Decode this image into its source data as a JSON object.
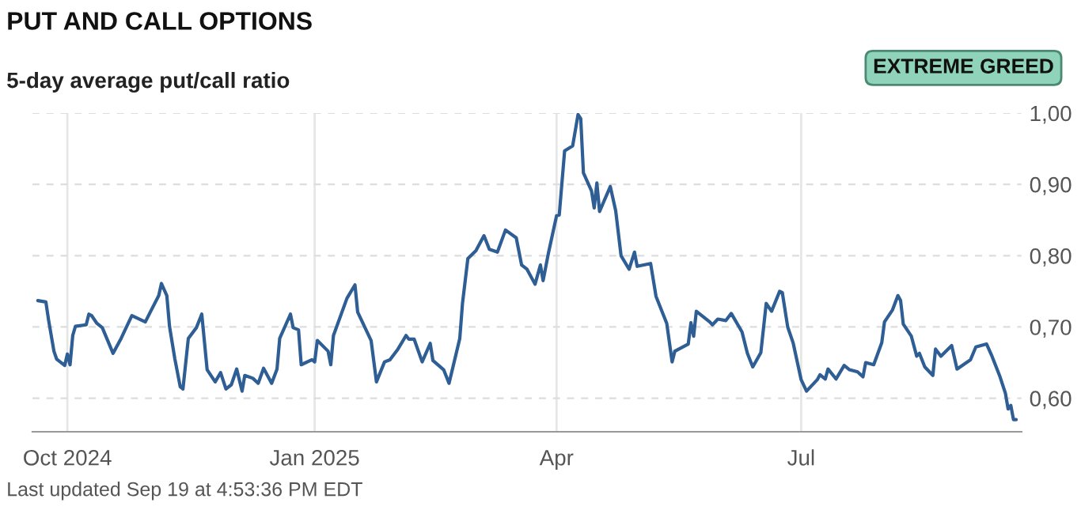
{
  "chart_data": {
    "type": "line",
    "title": "PUT AND CALL OPTIONS",
    "subtitle": "5-day average put/call ratio",
    "annotations": [
      "EXTREME GREED",
      "Last updated Sep 19 at 4:53:36 PM EDT"
    ],
    "x": [
      "2024-09-20",
      "2024-09-23",
      "2024-09-24",
      "2024-09-26",
      "2024-09-27",
      "2024-09-30",
      "2024-10-01",
      "2024-10-02",
      "2024-10-03",
      "2024-10-04",
      "2024-10-08",
      "2024-10-09",
      "2024-10-10",
      "2024-10-12",
      "2024-10-14",
      "2024-10-16",
      "2024-10-18",
      "2024-10-21",
      "2024-10-23",
      "2024-10-25",
      "2024-10-30",
      "2024-11-01",
      "2024-11-04",
      "2024-11-05",
      "2024-11-07",
      "2024-11-08",
      "2024-11-10",
      "2024-11-12",
      "2024-11-13",
      "2024-11-15",
      "2024-11-18",
      "2024-11-20",
      "2024-11-22",
      "2024-11-25",
      "2024-11-27",
      "2024-11-29",
      "2024-12-01",
      "2024-12-03",
      "2024-12-05",
      "2024-12-06",
      "2024-12-09",
      "2024-12-11",
      "2024-12-13",
      "2024-12-16",
      "2024-12-18",
      "2024-12-19",
      "2024-12-23",
      "2024-12-24",
      "2024-12-26",
      "2024-12-27",
      "2024-12-31",
      "2025-01-01",
      "2025-01-02",
      "2025-01-06",
      "2025-01-07",
      "2025-01-08",
      "2025-01-13",
      "2025-01-16",
      "2025-01-17",
      "2025-01-22",
      "2025-01-24",
      "2025-01-27",
      "2025-01-29",
      "2025-02-01",
      "2025-02-04",
      "2025-02-05",
      "2025-02-07",
      "2025-02-10",
      "2025-02-13",
      "2025-02-14",
      "2025-02-18",
      "2025-02-20",
      "2025-02-24",
      "2025-02-25",
      "2025-02-27",
      "2025-03-02",
      "2025-03-05",
      "2025-03-07",
      "2025-03-10",
      "2025-03-13",
      "2025-03-17",
      "2025-03-19",
      "2025-03-21",
      "2025-03-24",
      "2025-03-26",
      "2025-03-27",
      "2025-03-29",
      "2025-04-01",
      "2025-04-02",
      "2025-04-04",
      "2025-04-07",
      "2025-04-09",
      "2025-04-10",
      "2025-04-11",
      "2025-04-14",
      "2025-04-15",
      "2025-04-16",
      "2025-04-17",
      "2025-04-21",
      "2025-04-23",
      "2025-04-25",
      "2025-04-28",
      "2025-04-30",
      "2025-05-01",
      "2025-05-06",
      "2025-05-08",
      "2025-05-12",
      "2025-05-14",
      "2025-05-15",
      "2025-05-20",
      "2025-05-21",
      "2025-05-22",
      "2025-05-23",
      "2025-05-28",
      "2025-05-29",
      "2025-05-31",
      "2025-06-03",
      "2025-06-05",
      "2025-06-09",
      "2025-06-11",
      "2025-06-13",
      "2025-06-16",
      "2025-06-18",
      "2025-06-20",
      "2025-06-23",
      "2025-06-24",
      "2025-06-26",
      "2025-06-28",
      "2025-07-01",
      "2025-07-03",
      "2025-07-07",
      "2025-07-08",
      "2025-07-10",
      "2025-07-11",
      "2025-07-14",
      "2025-07-17",
      "2025-07-19",
      "2025-07-22",
      "2025-07-24",
      "2025-07-25",
      "2025-07-28",
      "2025-07-31",
      "2025-08-01",
      "2025-08-04",
      "2025-08-06",
      "2025-08-07",
      "2025-08-08",
      "2025-08-11",
      "2025-08-13",
      "2025-08-14",
      "2025-08-16",
      "2025-08-19",
      "2025-08-20",
      "2025-08-22",
      "2025-08-26",
      "2025-08-28",
      "2025-09-02",
      "2025-09-04",
      "2025-09-08",
      "2025-09-10",
      "2025-09-13",
      "2025-09-15",
      "2025-09-16",
      "2025-09-17",
      "2025-09-18",
      "2025-09-19"
    ],
    "series": [
      {
        "color": "#2e5e94",
        "values": [
          0.737,
          0.735,
          0.71,
          0.666,
          0.655,
          0.646,
          0.662,
          0.647,
          0.688,
          0.701,
          0.703,
          0.718,
          0.716,
          0.705,
          0.699,
          0.681,
          0.663,
          0.684,
          0.7,
          0.716,
          0.707,
          0.722,
          0.744,
          0.761,
          0.744,
          0.701,
          0.655,
          0.616,
          0.613,
          0.684,
          0.699,
          0.718,
          0.64,
          0.623,
          0.636,
          0.613,
          0.619,
          0.641,
          0.61,
          0.632,
          0.628,
          0.621,
          0.642,
          0.621,
          0.641,
          0.684,
          0.718,
          0.699,
          0.696,
          0.647,
          0.654,
          0.651,
          0.681,
          0.666,
          0.647,
          0.688,
          0.74,
          0.759,
          0.721,
          0.681,
          0.623,
          0.651,
          0.654,
          0.669,
          0.688,
          0.683,
          0.683,
          0.651,
          0.677,
          0.653,
          0.64,
          0.621,
          0.684,
          0.733,
          0.796,
          0.807,
          0.828,
          0.809,
          0.805,
          0.836,
          0.825,
          0.787,
          0.781,
          0.76,
          0.787,
          0.765,
          0.804,
          0.856,
          0.857,
          0.947,
          0.954,
          0.998,
          0.992,
          0.916,
          0.891,
          0.867,
          0.902,
          0.862,
          0.897,
          0.863,
          0.8,
          0.781,
          0.805,
          0.785,
          0.789,
          0.743,
          0.705,
          0.651,
          0.666,
          0.676,
          0.706,
          0.687,
          0.722,
          0.707,
          0.703,
          0.711,
          0.709,
          0.719,
          0.693,
          0.663,
          0.644,
          0.664,
          0.733,
          0.722,
          0.75,
          0.748,
          0.7,
          0.678,
          0.626,
          0.61,
          0.626,
          0.633,
          0.627,
          0.641,
          0.627,
          0.646,
          0.64,
          0.637,
          0.63,
          0.65,
          0.647,
          0.678,
          0.707,
          0.724,
          0.744,
          0.737,
          0.704,
          0.687,
          0.659,
          0.663,
          0.644,
          0.632,
          0.669,
          0.659,
          0.674,
          0.641,
          0.654,
          0.672,
          0.676,
          0.659,
          0.63,
          0.607,
          0.585,
          0.59,
          0.57,
          0.57
        ]
      }
    ],
    "xlim": [
      "2024-09-18",
      "2025-09-21"
    ],
    "xticks": [
      {
        "value": "2024-10-01",
        "label": "Oct 2024"
      },
      {
        "value": "2025-01-01",
        "label": "Jan 2025"
      },
      {
        "value": "2025-04-01",
        "label": "Apr"
      },
      {
        "value": "2025-07-01",
        "label": "Jul"
      }
    ],
    "ylim": [
      0.553,
      1.0
    ],
    "yticks": [
      {
        "value": 0.6,
        "label": "0,60"
      },
      {
        "value": 0.7,
        "label": "0,70"
      },
      {
        "value": 0.8,
        "label": "0,80"
      },
      {
        "value": 0.9,
        "label": "0,90"
      },
      {
        "value": 1.0,
        "label": "1,00"
      }
    ],
    "grid": true,
    "legend": false,
    "marker": "none",
    "line_style": "solid"
  }
}
